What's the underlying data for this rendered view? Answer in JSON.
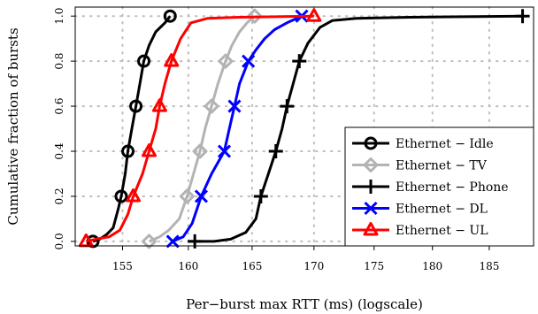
{
  "chart_data": {
    "type": "line",
    "xlabel": "Per−burst max RTT (ms) (logscale)",
    "ylabel": "Cumulative fraction of bursts",
    "xscale": "log",
    "xlim": [
      151.5,
      189
    ],
    "ylim": [
      -0.02,
      1.04
    ],
    "xticks": [
      155,
      160,
      165,
      170,
      175,
      180,
      185
    ],
    "yticks": [
      0.0,
      0.2,
      0.4,
      0.6,
      0.8,
      1.0
    ],
    "ytick_labels": [
      "0.0",
      "0.2",
      "0.4",
      "0.6",
      "0.8",
      "1.0"
    ],
    "grid": true,
    "legend_position": "bottom-right",
    "series": [
      {
        "name": "Ethernet − Idle",
        "color": "#000000",
        "marker": "circle",
        "points": [
          [
            152.8,
            0.0
          ],
          [
            153.3,
            0.01
          ],
          [
            153.8,
            0.03
          ],
          [
            154.3,
            0.06
          ],
          [
            154.7,
            0.15
          ],
          [
            154.9,
            0.2
          ],
          [
            155.2,
            0.3
          ],
          [
            155.4,
            0.4
          ],
          [
            155.7,
            0.5
          ],
          [
            156.0,
            0.6
          ],
          [
            156.3,
            0.7
          ],
          [
            156.6,
            0.8
          ],
          [
            157.0,
            0.87
          ],
          [
            157.5,
            0.93
          ],
          [
            158.2,
            0.97
          ],
          [
            158.6,
            1.0
          ]
        ],
        "markers": [
          [
            152.8,
            0.0
          ],
          [
            154.9,
            0.2
          ],
          [
            155.4,
            0.4
          ],
          [
            156.0,
            0.6
          ],
          [
            156.6,
            0.8
          ],
          [
            158.6,
            1.0
          ]
        ]
      },
      {
        "name": "Ethernet − TV",
        "color": "#b3b3b3",
        "marker": "diamond",
        "points": [
          [
            157.0,
            0.0
          ],
          [
            157.8,
            0.02
          ],
          [
            158.5,
            0.05
          ],
          [
            159.3,
            0.1
          ],
          [
            159.9,
            0.2
          ],
          [
            160.4,
            0.3
          ],
          [
            160.9,
            0.4
          ],
          [
            161.3,
            0.5
          ],
          [
            161.8,
            0.6
          ],
          [
            162.3,
            0.7
          ],
          [
            162.9,
            0.8
          ],
          [
            163.4,
            0.87
          ],
          [
            164.0,
            0.93
          ],
          [
            164.6,
            0.97
          ],
          [
            165.2,
            1.0
          ]
        ],
        "markers": [
          [
            157.0,
            0.0
          ],
          [
            159.9,
            0.2
          ],
          [
            160.9,
            0.4
          ],
          [
            161.8,
            0.6
          ],
          [
            162.9,
            0.8
          ],
          [
            165.2,
            1.0
          ]
        ]
      },
      {
        "name": "Ethernet − Phone",
        "color": "#000000",
        "marker": "plus",
        "points": [
          [
            160.0,
            0.0
          ],
          [
            162.0,
            0.0
          ],
          [
            163.3,
            0.01
          ],
          [
            164.5,
            0.04
          ],
          [
            165.3,
            0.1
          ],
          [
            165.7,
            0.2
          ],
          [
            166.3,
            0.3
          ],
          [
            166.9,
            0.4
          ],
          [
            167.4,
            0.5
          ],
          [
            167.8,
            0.6
          ],
          [
            168.3,
            0.7
          ],
          [
            168.8,
            0.8
          ],
          [
            169.5,
            0.88
          ],
          [
            170.5,
            0.95
          ],
          [
            171.5,
            0.98
          ],
          [
            173.5,
            0.99
          ],
          [
            178.0,
            0.995
          ],
          [
            184.0,
            0.998
          ],
          [
            188.0,
            1.0
          ]
        ],
        "markers": [
          [
            160.5,
            0.0
          ],
          [
            165.7,
            0.2
          ],
          [
            166.9,
            0.4
          ],
          [
            167.8,
            0.6
          ],
          [
            168.8,
            0.8
          ],
          [
            188.0,
            1.0
          ]
        ]
      },
      {
        "name": "Ethernet − DL",
        "color": "#0000ff",
        "marker": "x",
        "points": [
          [
            158.8,
            0.0
          ],
          [
            159.6,
            0.02
          ],
          [
            160.3,
            0.08
          ],
          [
            161.0,
            0.2
          ],
          [
            161.8,
            0.3
          ],
          [
            162.8,
            0.4
          ],
          [
            163.2,
            0.5
          ],
          [
            163.6,
            0.6
          ],
          [
            164.0,
            0.7
          ],
          [
            164.7,
            0.8
          ],
          [
            165.3,
            0.85
          ],
          [
            166.0,
            0.9
          ],
          [
            166.8,
            0.94
          ],
          [
            167.8,
            0.97
          ],
          [
            169.0,
            1.0
          ]
        ],
        "markers": [
          [
            158.8,
            0.0
          ],
          [
            161.0,
            0.2
          ],
          [
            162.8,
            0.4
          ],
          [
            163.6,
            0.6
          ],
          [
            164.7,
            0.8
          ],
          [
            169.0,
            1.0
          ]
        ]
      },
      {
        "name": "Ethernet − UL",
        "color": "#ff0000",
        "marker": "triangle",
        "points": [
          [
            152.3,
            0.0
          ],
          [
            153.0,
            0.01
          ],
          [
            154.0,
            0.02
          ],
          [
            154.8,
            0.05
          ],
          [
            155.4,
            0.12
          ],
          [
            155.8,
            0.2
          ],
          [
            156.5,
            0.3
          ],
          [
            157.0,
            0.4
          ],
          [
            157.5,
            0.5
          ],
          [
            157.8,
            0.6
          ],
          [
            158.2,
            0.7
          ],
          [
            158.7,
            0.8
          ],
          [
            159.4,
            0.9
          ],
          [
            160.2,
            0.97
          ],
          [
            161.5,
            0.99
          ],
          [
            164.0,
            0.995
          ],
          [
            170.0,
            1.0
          ]
        ],
        "markers": [
          [
            152.3,
            0.0
          ],
          [
            155.8,
            0.2
          ],
          [
            157.0,
            0.4
          ],
          [
            157.8,
            0.6
          ],
          [
            158.7,
            0.8
          ],
          [
            170.0,
            1.0
          ]
        ]
      }
    ]
  }
}
